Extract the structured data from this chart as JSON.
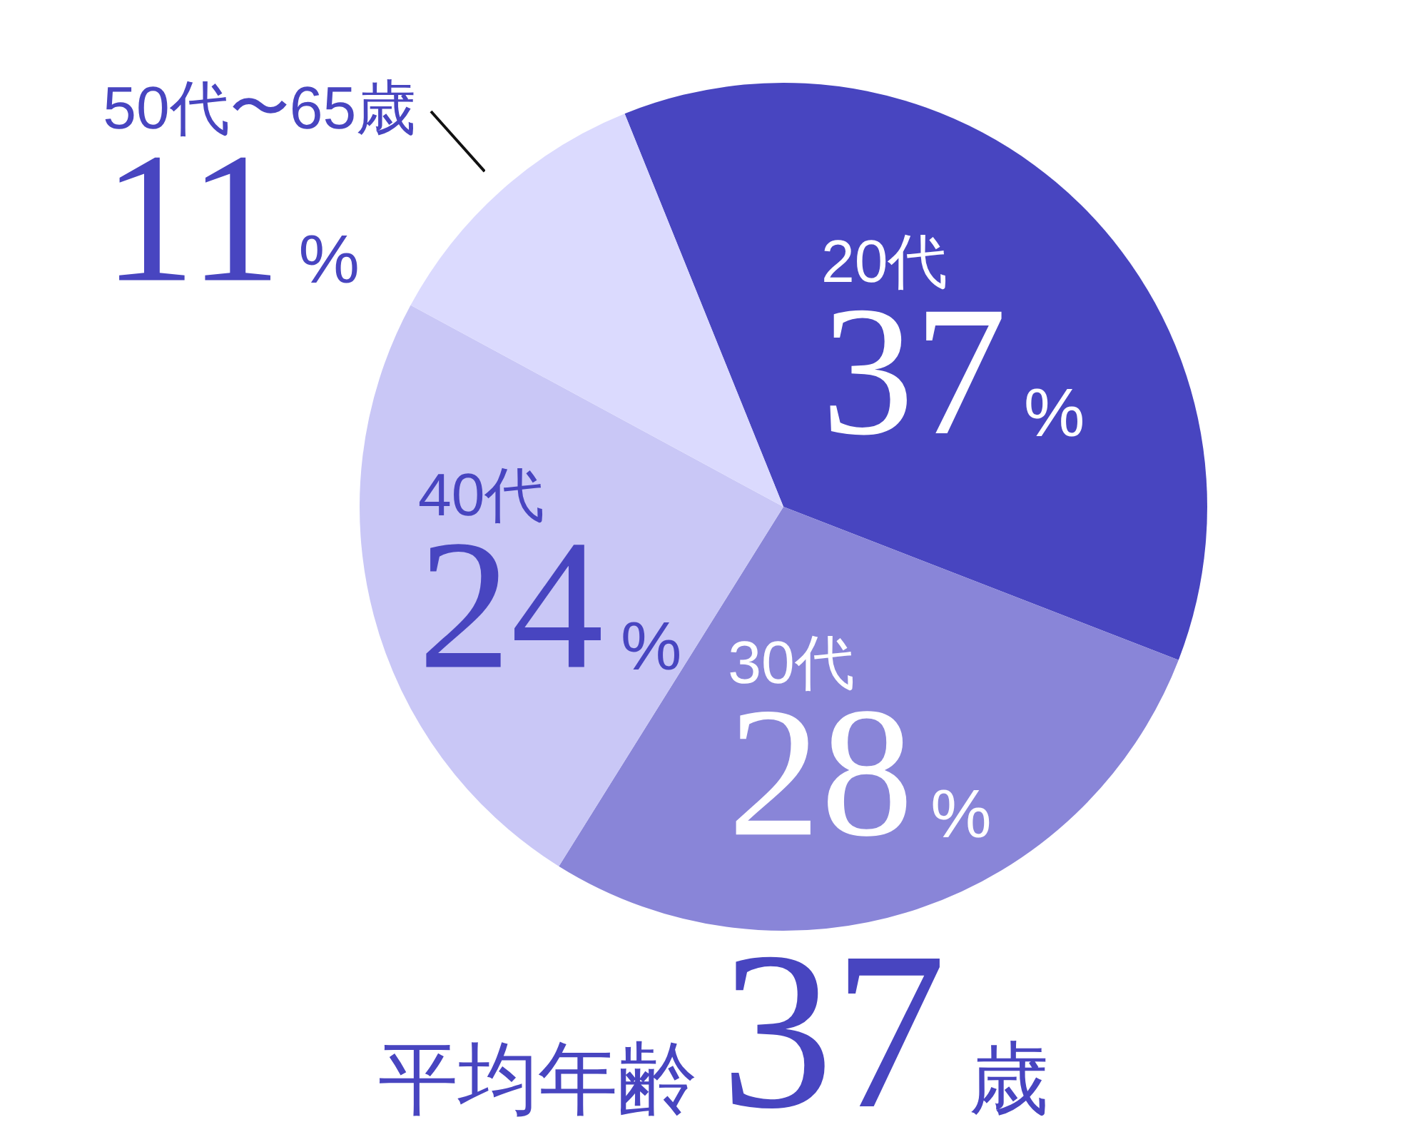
{
  "chart_data": {
    "type": "pie",
    "categories": [
      "20代",
      "30代",
      "40代",
      "50代〜65歳"
    ],
    "values": [
      37,
      28,
      24,
      11
    ],
    "colors": [
      "#4845c0",
      "#8985d8",
      "#c9c7f6",
      "#dbdafe"
    ],
    "value_labels": [
      "37%",
      "28%",
      "24%",
      "11%"
    ],
    "annotations": [
      "平均年齢37歳"
    ]
  }
}
